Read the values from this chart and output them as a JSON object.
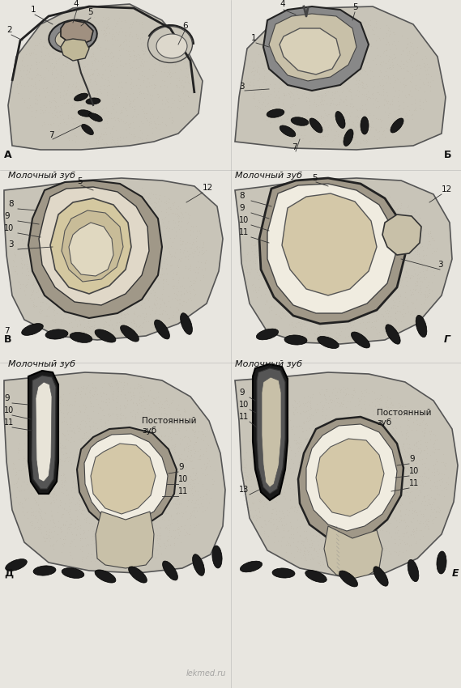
{
  "bg_color": "#f0eeea",
  "panel_bg": "#e8e4dc",
  "title_A": "А",
  "title_B": "Б",
  "title_V": "В",
  "title_G": "Г",
  "title_D": "Д",
  "title_E": "Е",
  "label_milk": "Молочный зуб",
  "label_perm": "Постоянный\nзуб",
  "watermark": "lekmed.ru",
  "panel_labels": [
    "А",
    "Б",
    "В",
    "Г",
    "Д",
    "Е"
  ],
  "label_color": "#222222",
  "line_color": "#333333",
  "dark_fill": "#1a1a1a",
  "medium_fill": "#555555",
  "light_fill": "#aaaaaa",
  "dotted_fill": "#cccccc",
  "bone_fill": "#888888",
  "pulp_fill": "#d4c8a0",
  "enamel_fill": "#f5f0e0",
  "dentin_fill": "#b8a878",
  "num_labels_A": [
    "1",
    "2",
    "4",
    "5",
    "6",
    "7"
  ],
  "num_labels_B": [
    "1",
    "3",
    "4",
    "5",
    "7"
  ],
  "num_labels_V": [
    "3",
    "5",
    "7",
    "8",
    "9",
    "10",
    "12"
  ],
  "num_labels_G": [
    "3",
    "5",
    "8",
    "9",
    "10",
    "11",
    "12"
  ],
  "num_labels_D": [
    "9",
    "10",
    "11"
  ],
  "num_labels_E": [
    "9",
    "10",
    "11",
    "13"
  ]
}
